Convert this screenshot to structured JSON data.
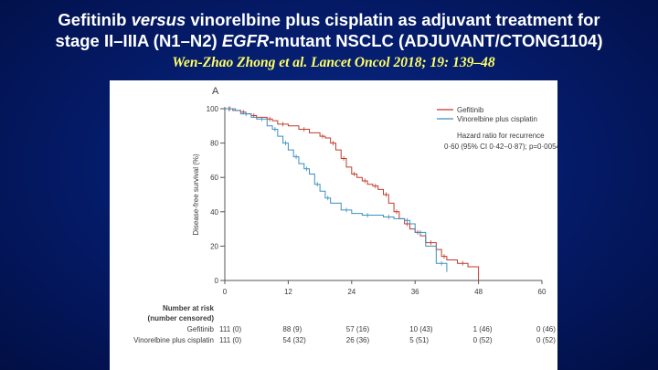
{
  "slide": {
    "title_line1_a": "Gefitinib ",
    "title_line1_b": "versus",
    "title_line1_c": " vinorelbine plus cisplatin as adjuvant treatment for",
    "title_line2_a": "stage II–IIIA (N1–N2) ",
    "title_line2_b": "EGFR",
    "title_line2_c": "-mutant NSCLC (ADJUVANT/CTONG1104)",
    "citation": "Wen-Zhao Zhong et al. Lancet Oncol 2018; 19: 139–48"
  },
  "colors": {
    "gefitinib": "#c0392b",
    "vinorelbine": "#3a8fc0",
    "background": "#041a66",
    "citation": "#ffff66"
  },
  "chart_data": {
    "type": "line",
    "panel_label": "A",
    "ylabel": "Disease-free survival (%)",
    "xlabel": "",
    "xlim": [
      0,
      60
    ],
    "ylim": [
      0,
      100
    ],
    "x_ticks": [
      "0",
      "12",
      "24",
      "36",
      "48",
      "60"
    ],
    "y_ticks": [
      "0",
      "20",
      "40",
      "60",
      "80",
      "100"
    ],
    "legend": [
      "Gefitinib",
      "Vinorelbine plus cisplatin"
    ],
    "hazard_ratio_label": "Hazard ratio for recurrence",
    "hazard_ratio_value": "0·60 (95% CI 0·42–0·87); p=0·0054",
    "series": [
      {
        "name": "Gefitinib",
        "color": "#c0392b",
        "x": [
          0,
          1.5,
          3,
          4,
          5,
          6,
          8,
          9,
          10,
          12,
          14,
          16,
          18,
          19,
          20,
          21,
          22,
          23,
          24,
          25,
          26,
          27,
          28,
          29,
          30,
          31,
          32,
          33,
          34,
          35,
          36,
          37,
          38,
          40,
          41,
          42,
          44,
          46,
          48
        ],
        "y": [
          100,
          99,
          98,
          97,
          96,
          95,
          94,
          93,
          91,
          90,
          88,
          86,
          84,
          83,
          80,
          76,
          71,
          66,
          62,
          60,
          58,
          56,
          55,
          53,
          50,
          45,
          40,
          36,
          33,
          30,
          28,
          26,
          22,
          18,
          14,
          12,
          10,
          8,
          0
        ]
      },
      {
        "name": "Vinorelbine plus cisplatin",
        "color": "#3a8fc0",
        "x": [
          0,
          2,
          3,
          5,
          6,
          8,
          9,
          10,
          11,
          12,
          13,
          14,
          15,
          16,
          17,
          18,
          19,
          20,
          22,
          24,
          26,
          28,
          30,
          32,
          34,
          35,
          36,
          38,
          40,
          42
        ],
        "y": [
          100,
          99,
          97,
          95,
          94,
          90,
          88,
          84,
          80,
          76,
          72,
          68,
          65,
          62,
          56,
          52,
          48,
          45,
          41,
          39,
          38,
          38,
          37,
          36,
          35,
          33,
          28,
          20,
          10,
          5
        ]
      }
    ],
    "risk_table": {
      "header_line1": "Number at risk",
      "header_line2": "(number censored)",
      "rows": [
        {
          "label": "Gefitinib",
          "values": [
            "111 (0)",
            "88 (9)",
            "57 (16)",
            "10 (43)",
            "1 (46)",
            "0 (46)"
          ]
        },
        {
          "label": "Vinorelbine plus cisplatin",
          "values": [
            "111 (0)",
            "54 (32)",
            "26 (36)",
            "5 (51)",
            "0 (52)",
            "0 (52)"
          ]
        }
      ]
    }
  }
}
